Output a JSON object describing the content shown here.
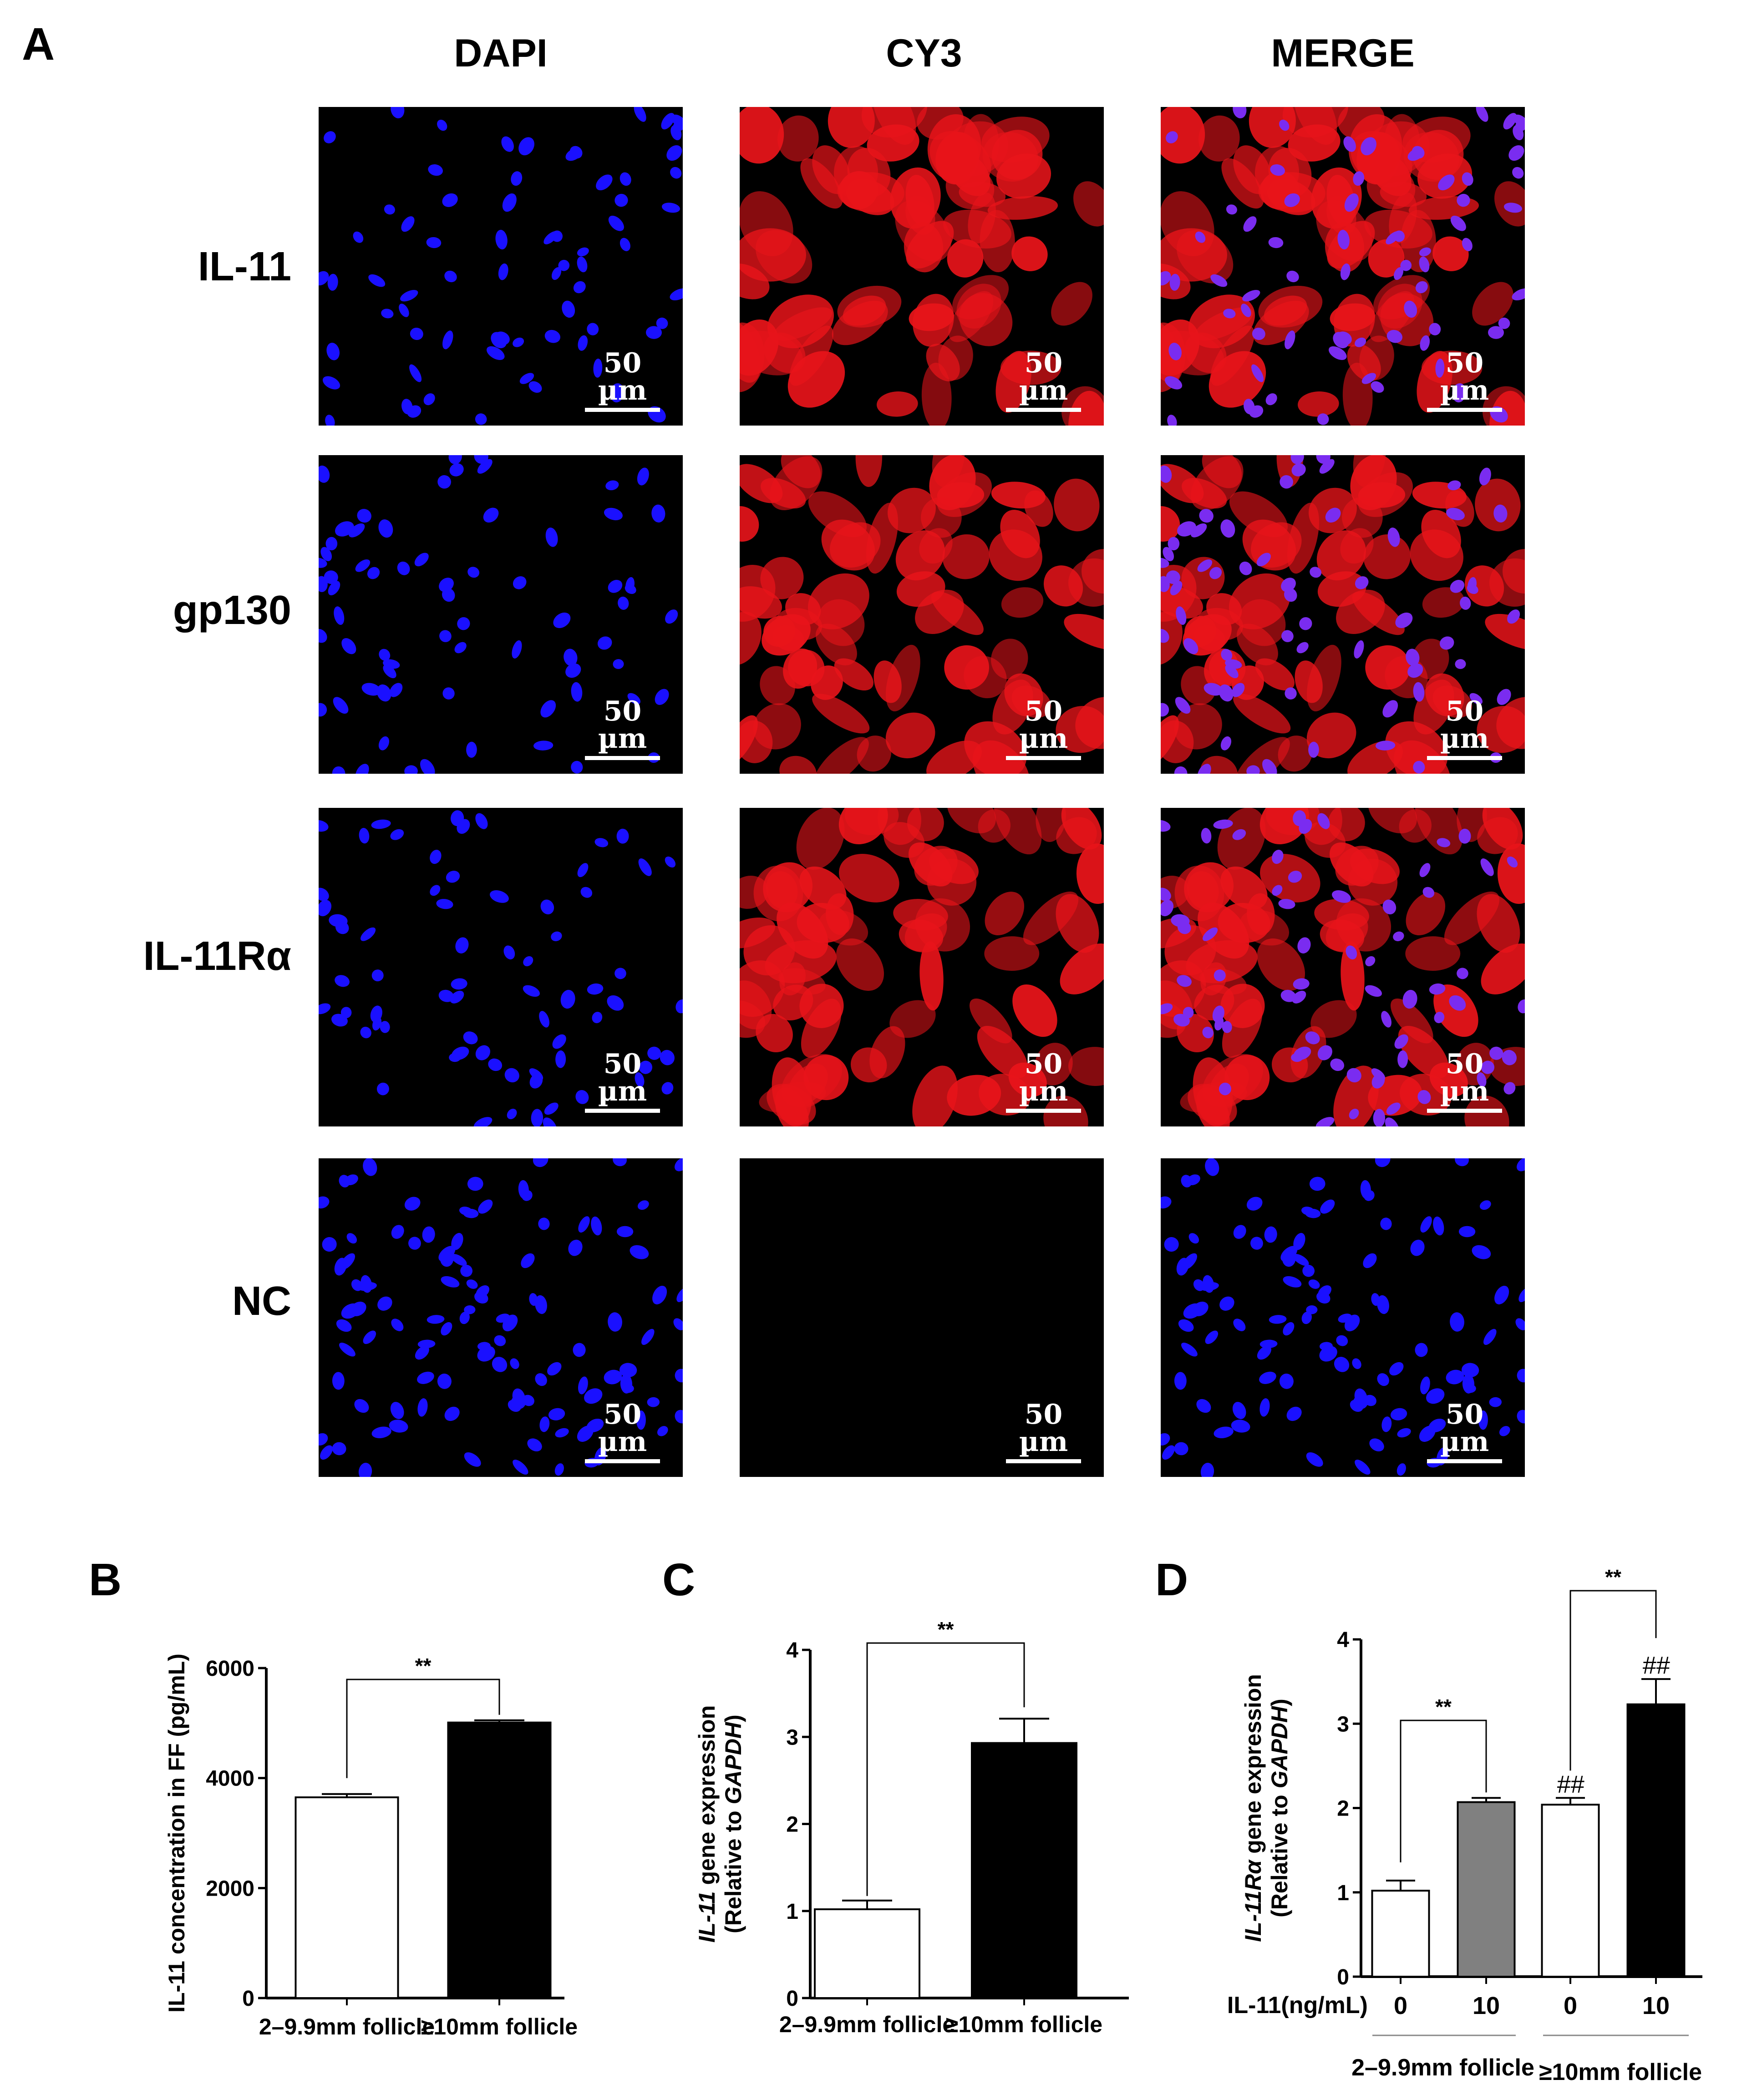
{
  "panel_a": {
    "letter": "A",
    "columns": [
      "DAPI",
      "CY3",
      "MERGE"
    ],
    "rows": [
      "IL-11",
      "gp130",
      "IL-11Rα",
      "NC"
    ],
    "scale_bar": "50 µm",
    "colors": {
      "dapi": "#1a10ff",
      "cy3": "#e8141a",
      "merge_nucleus": "#7a2cf0",
      "background": "#000000"
    }
  },
  "chart_data": [
    {
      "panel": "B",
      "type": "bar",
      "categories": [
        "2–9.9mm follicle",
        "≥10mm follicle"
      ],
      "values": [
        3650,
        5010
      ],
      "errors": [
        60,
        40
      ],
      "bar_colors": [
        "#ffffff",
        "#000000"
      ],
      "ylabel": "IL-11 concentration in FF (pg/mL)",
      "ylim": [
        0,
        6000
      ],
      "yticks": [
        0,
        2000,
        4000,
        6000
      ],
      "significance": [
        {
          "from": 0,
          "to": 1,
          "label": "**"
        }
      ],
      "grid": false
    },
    {
      "panel": "C",
      "type": "bar",
      "categories": [
        "2–9.9mm follicle",
        "≥10mm follicle"
      ],
      "values": [
        1.02,
        2.93
      ],
      "errors": [
        0.1,
        0.28
      ],
      "bar_colors": [
        "#ffffff",
        "#000000"
      ],
      "ylabel_italic": "IL-11",
      "ylabel_rest": " gene expression",
      "ylabel2_prefix": "(Relative to ",
      "ylabel2_italic": "GAPDH",
      "ylabel2_suffix": ")",
      "ylim": [
        0,
        4
      ],
      "yticks": [
        0,
        1,
        2,
        3,
        4
      ],
      "significance": [
        {
          "from": 0,
          "to": 1,
          "label": "**"
        }
      ],
      "grid": false
    },
    {
      "panel": "D",
      "type": "bar",
      "categories": [
        "0",
        "10",
        "0",
        "10"
      ],
      "values": [
        1.02,
        2.07,
        2.04,
        3.23
      ],
      "errors": [
        0.12,
        0.05,
        0.08,
        0.3
      ],
      "bar_colors": [
        "#ffffff",
        "#808080",
        "#ffffff",
        "#000000"
      ],
      "ylabel_italic": "IL-11Rα",
      "ylabel_rest": " gene expression",
      "ylabel2_prefix": "(Relative to ",
      "ylabel2_italic": "GAPDH",
      "ylabel2_suffix": ")",
      "ylim": [
        0,
        4
      ],
      "yticks": [
        0,
        1,
        2,
        3,
        4
      ],
      "row_label": "IL-11(ng/mL)",
      "groups": [
        "2–9.9mm follicle",
        "≥10mm follicle"
      ],
      "significance": [
        {
          "from": 0,
          "to": 1,
          "label": "**"
        },
        {
          "from": 2,
          "to": 3,
          "label": "**"
        }
      ],
      "bar_marks": [
        null,
        null,
        "##",
        "##"
      ],
      "grid": false
    }
  ]
}
